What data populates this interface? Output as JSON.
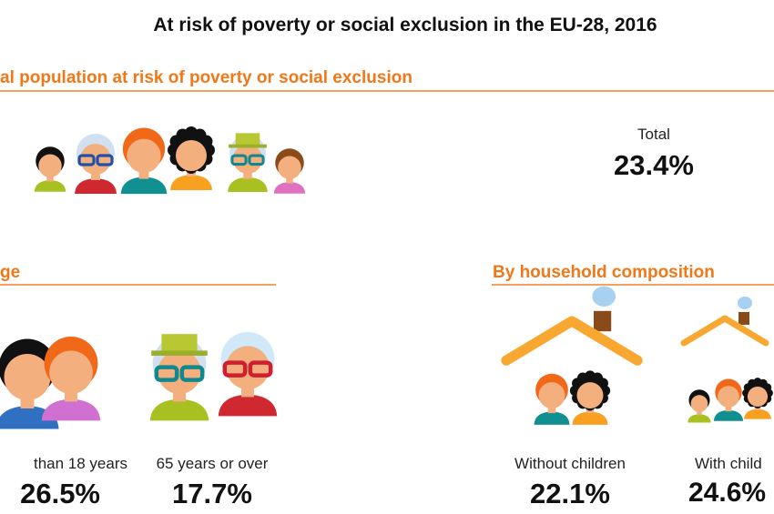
{
  "title": "At risk of poverty or social exclusion in the EU-28, 2016",
  "sections": {
    "total": {
      "heading": "al population at risk of poverty or social exclusion",
      "label": "Total",
      "value": "23.4%"
    },
    "age": {
      "heading": "ge",
      "items": [
        {
          "label": "than 18 years",
          "value": "26.5%"
        },
        {
          "label": "65 years or over",
          "value": "17.7%"
        }
      ]
    },
    "household": {
      "heading": "By household composition",
      "items": [
        {
          "label": "Without children",
          "value": "22.1%"
        },
        {
          "label": "With child",
          "value": "24.6%"
        }
      ]
    }
  },
  "colors": {
    "accent": "#f07818",
    "text": "#111111"
  }
}
